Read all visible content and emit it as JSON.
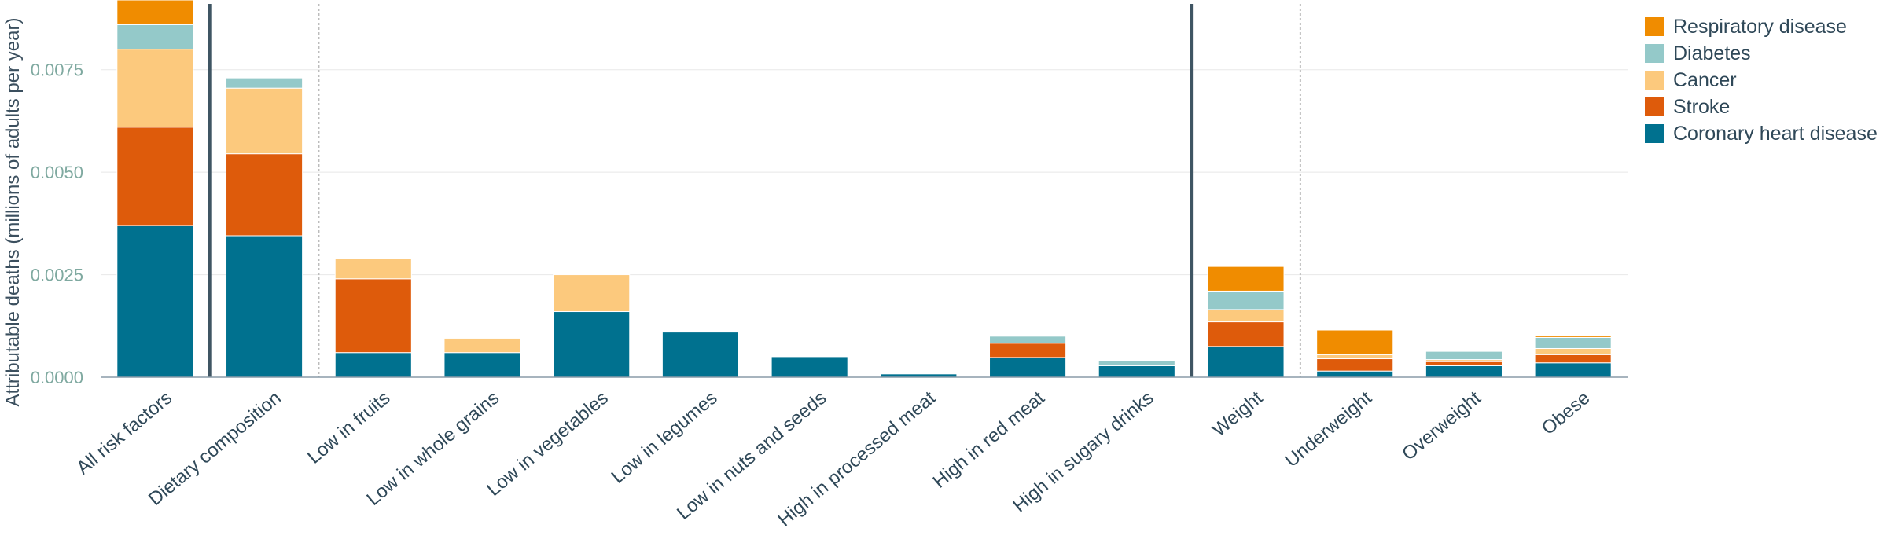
{
  "chart_data": {
    "type": "bar",
    "stacked": true,
    "title": "",
    "xlabel": "",
    "ylabel": "Attributable deaths (millions of adults per year)",
    "ylim": [
      0,
      0.0092
    ],
    "yticks": [
      0.0,
      0.0025,
      0.005,
      0.0075
    ],
    "ytick_labels": [
      "0.0000",
      "0.0025",
      "0.0050",
      "0.0075"
    ],
    "grid": true,
    "legend_position": "top-right",
    "categories": [
      "All risk factors",
      "Dietary composition",
      "Low in fruits",
      "Low in whole grains",
      "Low in vegetables",
      "Low in legumes",
      "Low in nuts and seeds",
      "High in processed meat",
      "High in red meat",
      "High in sugary drinks",
      "Weight",
      "Underweight",
      "Overweight",
      "Obese"
    ],
    "group_separators": [
      {
        "after_index": 0,
        "style": "solid"
      },
      {
        "after_index": 1,
        "style": "dotted"
      },
      {
        "after_index": 9,
        "style": "solid"
      },
      {
        "after_index": 10,
        "style": "dotted"
      }
    ],
    "series": [
      {
        "name": "Coronary heart disease",
        "color": "#00718f",
        "values": [
          0.0037,
          0.00345,
          0.0006,
          0.0006,
          0.0016,
          0.0011,
          0.0005,
          8e-05,
          0.00048,
          0.00028,
          0.00075,
          0.00015,
          0.00028,
          0.00035
        ]
      },
      {
        "name": "Stroke",
        "color": "#de5b0b",
        "values": [
          0.0024,
          0.002,
          0.0018,
          0.0,
          0.0,
          0.0,
          0.0,
          0.0,
          0.00035,
          0.0,
          0.0006,
          0.0003,
          0.0001,
          0.0002
        ]
      },
      {
        "name": "Cancer",
        "color": "#fcc97d",
        "values": [
          0.0019,
          0.0016,
          0.0005,
          0.00035,
          0.0009,
          0.0,
          0.0,
          0.0,
          0.0,
          0.0,
          0.0003,
          0.0001,
          5e-05,
          0.00015
        ]
      },
      {
        "name": "Diabetes",
        "color": "#94c9c9",
        "values": [
          0.0006,
          0.00025,
          0.0,
          0.0,
          0.0,
          0.0,
          0.0,
          0.0,
          0.00017,
          0.00012,
          0.00045,
          0.0,
          0.0002,
          0.00027
        ]
      },
      {
        "name": "Respiratory disease",
        "color": "#f08c00",
        "values": [
          0.0006,
          0.0,
          0.0,
          0.0,
          0.0,
          0.0,
          0.0,
          0.0,
          0.0,
          0.0,
          0.0006,
          0.0006,
          0.0,
          5e-05
        ]
      }
    ],
    "legend_order": [
      "Respiratory disease",
      "Diabetes",
      "Cancer",
      "Stroke",
      "Coronary heart disease"
    ]
  }
}
